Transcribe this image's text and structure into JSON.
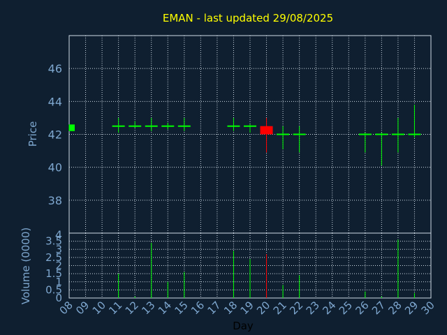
{
  "title": "EMAN - last updated 29/08/2025",
  "colors": {
    "background": "#0f1f30",
    "frame": "#cfdbe6",
    "grid": "#cfdbe6",
    "up": "#00ff00",
    "down": "#ff0000",
    "title": "#ffff00",
    "tick_text": "#7ea7cf"
  },
  "chart_data": [
    {
      "type": "candlestick",
      "ylabel": "Price",
      "ylim": [
        36,
        48
      ],
      "yticks": [
        "38",
        "40",
        "42",
        "44",
        "46"
      ],
      "x_ticks": [
        "08",
        "09",
        "10",
        "11",
        "12",
        "13",
        "14",
        "15",
        "16",
        "17",
        "18",
        "19",
        "20",
        "21",
        "22",
        "23",
        "24",
        "25",
        "26",
        "27",
        "28",
        "29",
        "30"
      ],
      "candles": [
        {
          "day": "08",
          "open": 42.2,
          "close": 42.6,
          "high": 42.6,
          "low": 42.2,
          "direction": "up"
        },
        {
          "day": "11",
          "open": 42.5,
          "close": 42.5,
          "high": 43.0,
          "low": 42.1,
          "direction": "up"
        },
        {
          "day": "12",
          "open": 42.5,
          "close": 42.5,
          "high": 42.8,
          "low": 42.4,
          "direction": "up"
        },
        {
          "day": "13",
          "open": 42.5,
          "close": 42.5,
          "high": 43.0,
          "low": 42.2,
          "direction": "up"
        },
        {
          "day": "14",
          "open": 42.5,
          "close": 42.5,
          "high": 42.7,
          "low": 42.3,
          "direction": "up"
        },
        {
          "day": "15",
          "open": 42.5,
          "close": 42.5,
          "high": 43.0,
          "low": 42.2,
          "direction": "up"
        },
        {
          "day": "18",
          "open": 42.5,
          "close": 42.5,
          "high": 43.0,
          "low": 42.2,
          "direction": "up"
        },
        {
          "day": "19",
          "open": 42.5,
          "close": 42.5,
          "high": 42.6,
          "low": 42.1,
          "direction": "up"
        },
        {
          "day": "20",
          "open": 42.5,
          "close": 42.0,
          "high": 43.0,
          "low": 40.9,
          "direction": "down"
        },
        {
          "day": "21",
          "open": 42.0,
          "close": 42.0,
          "high": 42.5,
          "low": 41.1,
          "direction": "up"
        },
        {
          "day": "22",
          "open": 42.0,
          "close": 42.0,
          "high": 42.5,
          "low": 40.9,
          "direction": "up"
        },
        {
          "day": "26",
          "open": 42.0,
          "close": 42.0,
          "high": 42.1,
          "low": 40.9,
          "direction": "up"
        },
        {
          "day": "27",
          "open": 42.0,
          "close": 42.0,
          "high": 42.1,
          "low": 40.1,
          "direction": "up"
        },
        {
          "day": "28",
          "open": 42.0,
          "close": 42.0,
          "high": 43.0,
          "low": 40.9,
          "direction": "up"
        },
        {
          "day": "29",
          "open": 42.0,
          "close": 42.0,
          "high": 43.8,
          "low": 41.8,
          "direction": "up"
        }
      ]
    },
    {
      "type": "bar",
      "ylabel": "Volume (0000)",
      "xlabel": "Day",
      "ylim": [
        0,
        4
      ],
      "yticks": [
        "0",
        "0.5",
        "1",
        "1.5",
        "2",
        "2.5",
        "3",
        "3.5",
        "4"
      ],
      "bars": [
        {
          "day": "08",
          "value": 0.0,
          "direction": "up"
        },
        {
          "day": "11",
          "value": 1.5,
          "direction": "up"
        },
        {
          "day": "12",
          "value": 0.1,
          "direction": "up"
        },
        {
          "day": "13",
          "value": 3.4,
          "direction": "up"
        },
        {
          "day": "14",
          "value": 1.0,
          "direction": "up"
        },
        {
          "day": "15",
          "value": 1.6,
          "direction": "up"
        },
        {
          "day": "18",
          "value": 2.9,
          "direction": "up"
        },
        {
          "day": "19",
          "value": 2.4,
          "direction": "up"
        },
        {
          "day": "20",
          "value": 2.7,
          "direction": "down"
        },
        {
          "day": "21",
          "value": 0.8,
          "direction": "up"
        },
        {
          "day": "22",
          "value": 1.4,
          "direction": "up"
        },
        {
          "day": "26",
          "value": 0.4,
          "direction": "up"
        },
        {
          "day": "27",
          "value": 0.1,
          "direction": "up"
        },
        {
          "day": "28",
          "value": 3.6,
          "direction": "up"
        },
        {
          "day": "29",
          "value": 0.3,
          "direction": "up"
        }
      ]
    }
  ]
}
